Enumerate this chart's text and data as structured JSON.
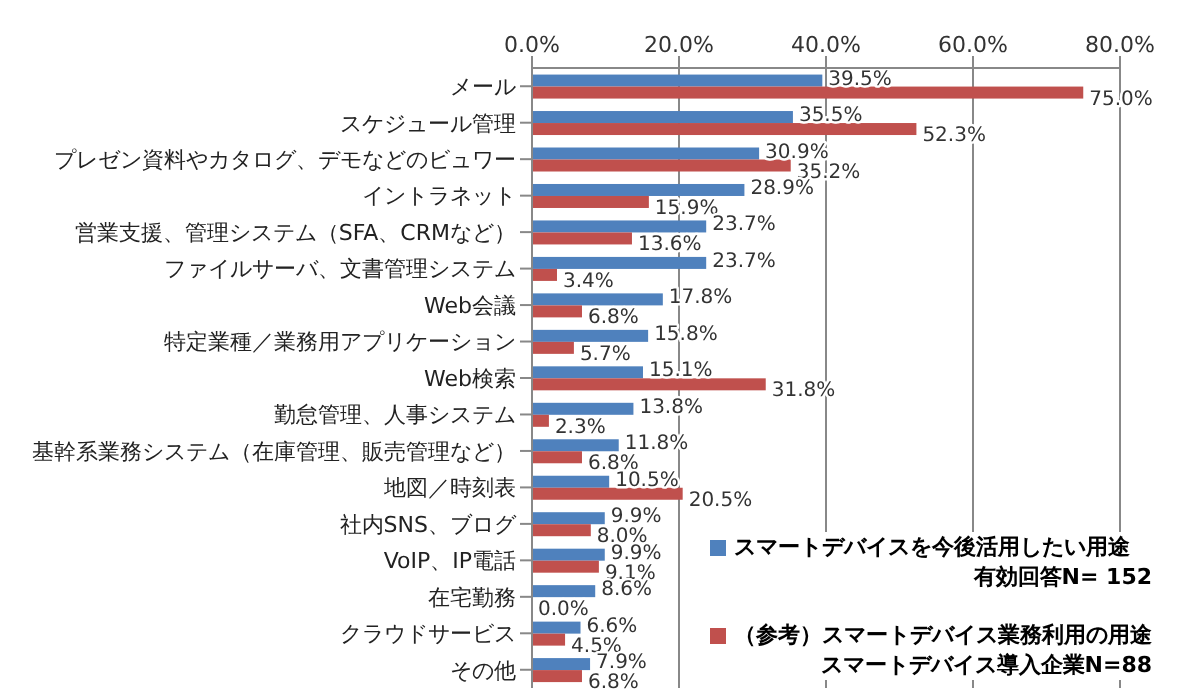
{
  "chart_data": {
    "type": "bar",
    "orientation": "horizontal",
    "categories": [
      "メール",
      "スケジュール管理",
      "プレゼン資料やカタログ、デモなどのビュワー",
      "イントラネット",
      "営業支援、管理システム（SFA、CRMなど）",
      "ファイルサーバ、文書管理システム",
      "Web会議",
      "特定業種／業務用アプリケーション",
      "Web検索",
      "勤怠管理、人事システム",
      "基幹系業務システム（在庫管理、販売管理など）",
      "地図／時刻表",
      "社内SNS、ブログ",
      "VoIP、IP電話",
      "在宅勤務",
      "クラウドサービス",
      "その他"
    ],
    "series": [
      {
        "name": "スマートデバイスを今後活用したい用途",
        "color": "#4f81bd",
        "values": [
          39.5,
          35.5,
          30.9,
          28.9,
          23.7,
          23.7,
          17.8,
          15.8,
          15.1,
          13.8,
          11.8,
          10.5,
          9.9,
          9.9,
          8.6,
          6.6,
          7.9
        ],
        "value_labels": [
          "39.5%",
          "35.5%",
          "30.9%",
          "28.9%",
          "23.7%",
          "23.7%",
          "17.8%",
          "15.8%",
          "15.1%",
          "13.8%",
          "11.8%",
          "10.5%",
          "9.9%",
          "9.9%",
          "8.6%",
          "6.6%",
          "7.9%"
        ]
      },
      {
        "name": "（参考）スマートデバイス業務利用の用途",
        "color": "#c0504d",
        "values": [
          75.0,
          52.3,
          35.2,
          15.9,
          13.6,
          3.4,
          6.8,
          5.7,
          31.8,
          2.3,
          6.8,
          20.5,
          8.0,
          9.1,
          0.0,
          4.5,
          6.8
        ],
        "value_labels": [
          "75.0%",
          "52.3%",
          "35.2%",
          "15.9%",
          "13.6%",
          "3.4%",
          "6.8%",
          "5.7%",
          "31.8%",
          "2.3%",
          "6.8%",
          "20.5%",
          "8.0%",
          "9.1%",
          "0.0%",
          "4.5%",
          "6.8%"
        ]
      }
    ],
    "xlim": [
      0,
      80
    ],
    "xticks": [
      {
        "value": 0,
        "label": "0.0%"
      },
      {
        "value": 20,
        "label": "20.0%"
      },
      {
        "value": 40,
        "label": "40.0%"
      },
      {
        "value": 60,
        "label": "60.0%"
      },
      {
        "value": 80,
        "label": "80.0%"
      }
    ],
    "grid": "x",
    "legend": "bottom right",
    "annotations": [
      "有効回答N= 152",
      "スマートデバイス導入企業N=88"
    ]
  }
}
